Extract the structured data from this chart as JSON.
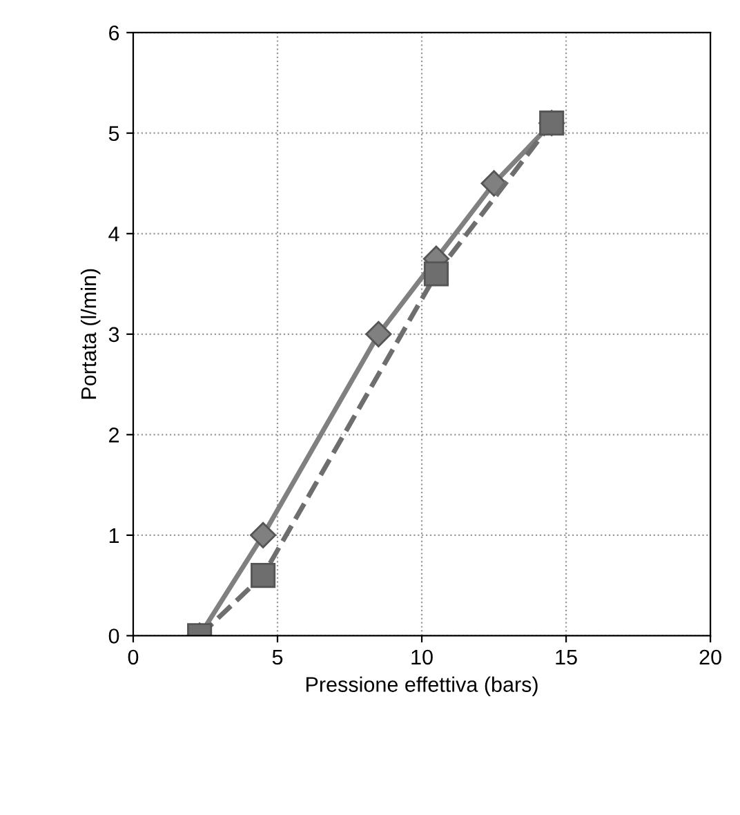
{
  "chart_data": {
    "type": "line",
    "xlabel": "Pressione effettiva (bars)",
    "ylabel": "Portata (l/min)",
    "xlim": [
      0,
      20
    ],
    "ylim": [
      0,
      6
    ],
    "xticks": [
      0,
      5,
      10,
      15,
      20
    ],
    "yticks": [
      0,
      1,
      2,
      3,
      4,
      5,
      6
    ],
    "grid": true,
    "series": [
      {
        "color": "#808080",
        "x": [
          2.3,
          4.5,
          8.5,
          10.5,
          12.5,
          14.5
        ],
        "values": [
          0,
          1,
          3,
          3.75,
          4.5,
          5.1
        ],
        "marker": "diamond",
        "line_style": "solid"
      },
      {
        "color": "#6e6e6e",
        "x": [
          2.3,
          4.5,
          10.5,
          14.5
        ],
        "values": [
          0,
          0.6,
          3.6,
          5.1
        ],
        "marker": "square",
        "line_style": "dashed"
      }
    ]
  }
}
